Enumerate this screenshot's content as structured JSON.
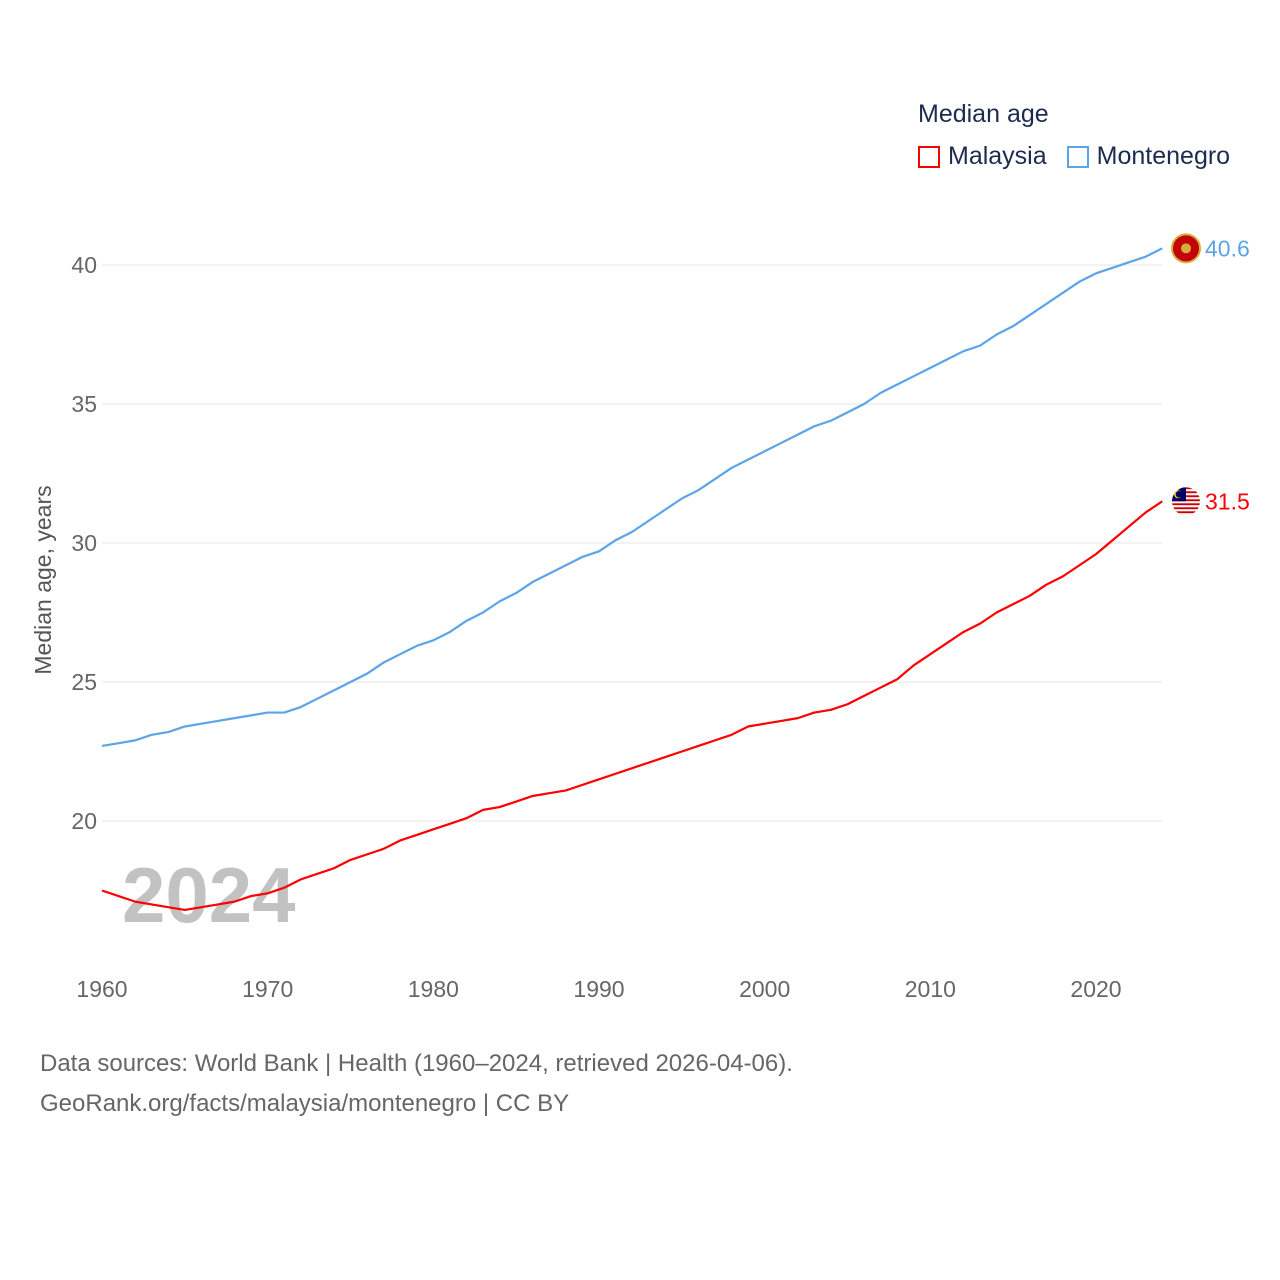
{
  "chart_data": {
    "type": "line",
    "title": "Median age",
    "ylabel": "Median age, years",
    "xlabel": "",
    "x": [
      1960,
      1961,
      1962,
      1963,
      1964,
      1965,
      1966,
      1967,
      1968,
      1969,
      1970,
      1971,
      1972,
      1973,
      1974,
      1975,
      1976,
      1977,
      1978,
      1979,
      1980,
      1981,
      1982,
      1983,
      1984,
      1985,
      1986,
      1987,
      1988,
      1989,
      1990,
      1991,
      1992,
      1993,
      1994,
      1995,
      1996,
      1997,
      1998,
      1999,
      2000,
      2001,
      2002,
      2003,
      2004,
      2005,
      2006,
      2007,
      2008,
      2009,
      2010,
      2011,
      2012,
      2013,
      2014,
      2015,
      2016,
      2017,
      2018,
      2019,
      2020,
      2021,
      2022,
      2023,
      2024
    ],
    "xticks": [
      "1960",
      "1970",
      "1980",
      "1990",
      "2000",
      "2010",
      "2020"
    ],
    "yticks": [
      "20",
      "25",
      "30",
      "35",
      "40"
    ],
    "ylim": [
      16.5,
      41
    ],
    "grid": true,
    "legend_position": "top-right",
    "series": [
      {
        "name": "Malaysia",
        "color": "#ff0000",
        "end_label": "31.5",
        "values": [
          17.5,
          17.3,
          17.1,
          17.0,
          16.9,
          16.8,
          16.9,
          17.0,
          17.1,
          17.3,
          17.4,
          17.6,
          17.9,
          18.1,
          18.3,
          18.6,
          18.8,
          19.0,
          19.3,
          19.5,
          19.7,
          19.9,
          20.1,
          20.4,
          20.5,
          20.7,
          20.9,
          21.0,
          21.1,
          21.3,
          21.5,
          21.7,
          21.9,
          22.1,
          22.3,
          22.5,
          22.7,
          22.9,
          23.1,
          23.4,
          23.5,
          23.6,
          23.7,
          23.9,
          24.0,
          24.2,
          24.5,
          24.8,
          25.1,
          25.6,
          26.0,
          26.4,
          26.8,
          27.1,
          27.5,
          27.8,
          28.1,
          28.5,
          28.8,
          29.2,
          29.6,
          30.1,
          30.6,
          31.1,
          31.5
        ]
      },
      {
        "name": "Montenegro",
        "color": "#5ba4e8",
        "end_label": "40.6",
        "values": [
          22.7,
          22.8,
          22.9,
          23.1,
          23.2,
          23.4,
          23.5,
          23.6,
          23.7,
          23.8,
          23.9,
          23.9,
          24.1,
          24.4,
          24.7,
          25.0,
          25.3,
          25.7,
          26.0,
          26.3,
          26.5,
          26.8,
          27.2,
          27.5,
          27.9,
          28.2,
          28.6,
          28.9,
          29.2,
          29.5,
          29.7,
          30.1,
          30.4,
          30.8,
          31.2,
          31.6,
          31.9,
          32.3,
          32.7,
          33.0,
          33.3,
          33.6,
          33.9,
          34.2,
          34.4,
          34.7,
          35.0,
          35.4,
          35.7,
          36.0,
          36.3,
          36.6,
          36.9,
          37.1,
          37.5,
          37.8,
          38.2,
          38.6,
          39.0,
          39.4,
          39.7,
          39.9,
          40.1,
          40.3,
          40.6
        ]
      }
    ],
    "annotation_year": "2024"
  },
  "footer": {
    "line1": "Data sources: World Bank | Health (1960–2024, retrieved 2026-04-06).",
    "line2": "GeoRank.org/facts/malaysia/montenegro | CC BY"
  }
}
